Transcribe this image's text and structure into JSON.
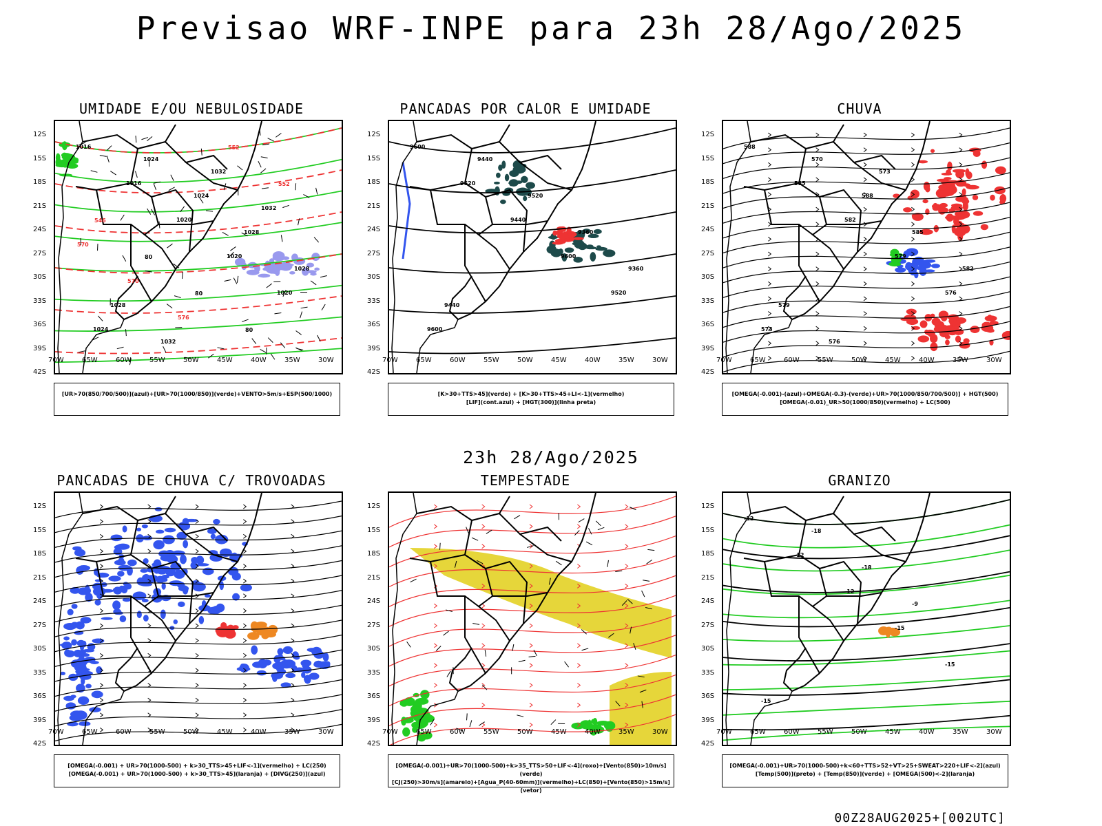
{
  "header": {
    "title": "Previsao WRF-INPE  para 23h 28/Ago/2025"
  },
  "mid_title": "23h 28/Ago/2025",
  "footer": "00Z28AUG2025+[002UTC]",
  "axes": {
    "lat_labels": [
      "12S",
      "15S",
      "18S",
      "21S",
      "24S",
      "27S",
      "30S",
      "33S",
      "36S",
      "39S",
      "42S"
    ],
    "lon_labels": [
      "70W",
      "65W",
      "60W",
      "55W",
      "50W",
      "45W",
      "40W",
      "35W",
      "30W"
    ]
  },
  "colors": {
    "green": "#22cc22",
    "red": "#ee3333",
    "blue": "#3355ee",
    "lavender": "#9999ee",
    "dark_teal": "#1d4a4a",
    "yellow": "#e6d63a",
    "orange": "#ee8822"
  },
  "panels": [
    {
      "id": "umidade",
      "title": "UMIDADE E/OU NEBULOSIDADE",
      "legend": [
        "[UR>70(850/700/500)](azul)+[UR>70(1000/850)](verde)+VENTO>5m/s+ESP(500/1000)"
      ],
      "labels": [
        "1016",
        "1016",
        "1020",
        "1020",
        "1020",
        "1024",
        "1024",
        "1024",
        "1028",
        "1028",
        "1028",
        "1032",
        "1032",
        "1032",
        "570",
        "570",
        "576",
        "552",
        "552",
        "546",
        "80",
        "80",
        "80"
      ]
    },
    {
      "id": "pancadas-calor",
      "title": "PANCADAS POR CALOR E UMIDADE",
      "legend": [
        "[K>30+TTS>45](verde) + [K>30+TTS>45+LI<-1](vermelho)",
        "[LIF](cont.azul) + [HGT(300)](linha preta)"
      ],
      "labels": [
        "9600",
        "9520",
        "9440",
        "9600",
        "9520",
        "9600",
        "9440",
        "9520",
        "9360",
        "9360",
        "9440"
      ]
    },
    {
      "id": "chuva",
      "title": "CHUVA",
      "legend": [
        "[OMEGA(-0.001)-(azul)+OMEGA(-0.3)-(verde)+UR>70(1000/850/700/500)] + HGT(500)",
        "[OMEGA(-0.01)_UR>50(1000/850)(vermelho) + LC(500)"
      ],
      "labels": [
        "588",
        "585",
        "582",
        "579",
        "576",
        "573",
        "570",
        "588",
        "585",
        "582",
        "579",
        "576",
        "573"
      ]
    },
    {
      "id": "trovoadas",
      "title": "PANCADAS DE CHUVA C/ TROVOADAS",
      "legend": [
        "[OMEGA(-0.001) + UR>70(1000-500) + k>30_TTS>45+LIF<-1](vermelho) + LC(250)",
        "[OMEGA(-0.001) + UR>70(1000-500) + k>30_TTS>45](laranja) + [DIVG(250)](azul)"
      ],
      "labels": []
    },
    {
      "id": "tempestade",
      "title": "TEMPESTADE",
      "legend": [
        "[OMEGA(-0.001)+UR>70(1000-500)+k>35_TTS>50+LIF<-4](roxo)+[Vento(850)>10m/s](verde)",
        "[CJ(250)>30m/s](amarelo)+[Agua_P(40-60mm)](vermelho)+LC(850)+[Vento(850)>15m/s](vetor)"
      ],
      "labels": []
    },
    {
      "id": "granizo",
      "title": "GRANIZO",
      "legend": [
        "[OMEGA(-0.001)+UR>70(1000-500)+k<60+TTS>52+VT>25+SWEAT>220+LIF<-2](azul)",
        "[Temp(500)](preto) + [Temp(850)](verde) + [OMEGA(500)<-2](laranja)"
      ],
      "labels": [
        "-12",
        "-12",
        "-12",
        "-15",
        "-15",
        "-15",
        "-18",
        "-18",
        "-9"
      ]
    }
  ]
}
